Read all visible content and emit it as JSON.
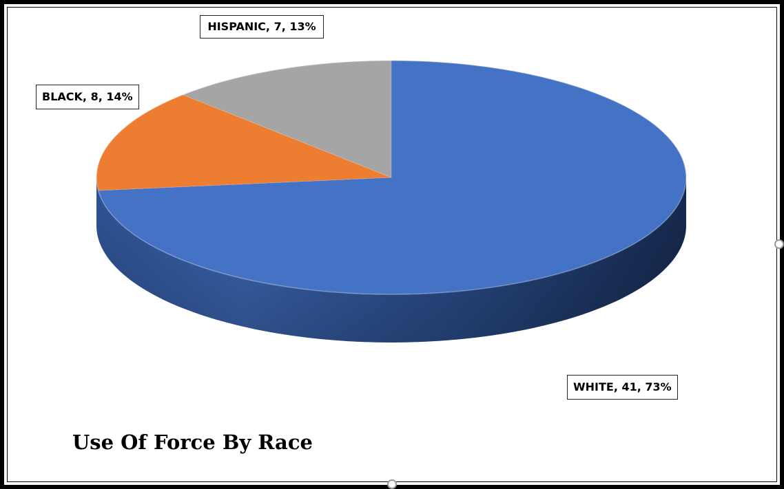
{
  "chart_data": {
    "type": "pie",
    "title": "Use Of Force By Race",
    "categories": [
      "WHITE",
      "BLACK",
      "HISPANIC"
    ],
    "values": [
      41,
      8,
      7
    ],
    "percents": [
      73,
      14,
      13
    ],
    "colors": [
      "#4472c4",
      "#ed7d31",
      "#a5a5a5"
    ],
    "labels": {
      "white": "WHITE, 41, 73%",
      "black": "BLACK, 8, 14%",
      "hispanic": "HISPANIC, 7, 13%"
    },
    "three_d": true
  }
}
